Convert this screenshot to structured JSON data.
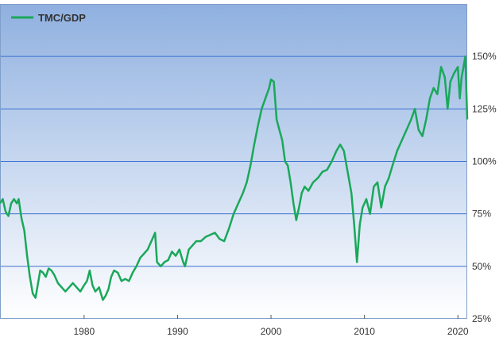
{
  "colors": {
    "series": "#1aa85a",
    "grid": "#3a6fd1",
    "bg_top": "#8fb0e0",
    "bg_bottom": "#ffffff",
    "frame": "#7f9fc9"
  },
  "chart_data": {
    "type": "line",
    "title": "",
    "xlabel": "",
    "ylabel": "",
    "xlim": [
      1971,
      2021
    ],
    "ylim": [
      0.25,
      1.75
    ],
    "grid": true,
    "legend_position": "top-left",
    "y_axis_side": "right",
    "y_ticks": [
      {
        "value": 0.25,
        "label": "25%"
      },
      {
        "value": 0.5,
        "label": "50%"
      },
      {
        "value": 0.75,
        "label": "75%"
      },
      {
        "value": 1.0,
        "label": "100%"
      },
      {
        "value": 1.25,
        "label": "125%"
      },
      {
        "value": 1.5,
        "label": "150%"
      }
    ],
    "x_ticks": [
      {
        "value": 1980,
        "label": "1980"
      },
      {
        "value": 1990,
        "label": "1990"
      },
      {
        "value": 2000,
        "label": "2000"
      },
      {
        "value": 2010,
        "label": "2010"
      },
      {
        "value": 2020,
        "label": "2020"
      }
    ],
    "series": [
      {
        "name": "TMC/GDP",
        "x": [
          1971.0,
          1971.3,
          1971.6,
          1971.9,
          1972.2,
          1972.5,
          1972.8,
          1973.0,
          1973.3,
          1973.6,
          1973.9,
          1974.2,
          1974.5,
          1974.8,
          1975.0,
          1975.3,
          1975.6,
          1975.9,
          1976.2,
          1976.5,
          1976.8,
          1977.2,
          1977.6,
          1978.0,
          1978.4,
          1978.8,
          1979.2,
          1979.6,
          1980.0,
          1980.3,
          1980.6,
          1980.9,
          1981.2,
          1981.6,
          1982.0,
          1982.3,
          1982.6,
          1982.9,
          1983.2,
          1983.6,
          1984.0,
          1984.4,
          1984.8,
          1985.2,
          1985.6,
          1986.0,
          1986.4,
          1986.8,
          1987.2,
          1987.6,
          1987.8,
          1988.2,
          1988.6,
          1989.0,
          1989.4,
          1989.8,
          1990.2,
          1990.6,
          1990.8,
          1991.2,
          1991.6,
          1992.0,
          1992.5,
          1993.0,
          1993.5,
          1994.0,
          1994.5,
          1995.0,
          1995.5,
          1996.0,
          1996.5,
          1997.0,
          1997.4,
          1997.8,
          1998.2,
          1998.6,
          1999.0,
          1999.4,
          1999.8,
          2000.0,
          2000.3,
          2000.6,
          2000.9,
          2001.2,
          2001.5,
          2001.8,
          2002.1,
          2002.4,
          2002.7,
          2003.0,
          2003.3,
          2003.6,
          2004.0,
          2004.5,
          2005.0,
          2005.5,
          2006.0,
          2006.5,
          2007.0,
          2007.4,
          2007.8,
          2008.2,
          2008.6,
          2008.9,
          2009.2,
          2009.5,
          2009.8,
          2010.2,
          2010.6,
          2011.0,
          2011.4,
          2011.8,
          2012.2,
          2012.6,
          2013.0,
          2013.5,
          2014.0,
          2014.5,
          2015.0,
          2015.4,
          2015.8,
          2016.2,
          2016.6,
          2017.0,
          2017.4,
          2017.8,
          2018.2,
          2018.6,
          2018.9,
          2019.2,
          2019.6,
          2020.0,
          2020.2,
          2020.4,
          2020.6,
          2020.8,
          2021.0
        ],
        "y": [
          0.8,
          0.82,
          0.76,
          0.74,
          0.8,
          0.82,
          0.8,
          0.82,
          0.73,
          0.67,
          0.55,
          0.45,
          0.37,
          0.35,
          0.4,
          0.48,
          0.47,
          0.45,
          0.49,
          0.48,
          0.46,
          0.42,
          0.4,
          0.38,
          0.4,
          0.42,
          0.4,
          0.38,
          0.41,
          0.43,
          0.48,
          0.41,
          0.38,
          0.4,
          0.34,
          0.36,
          0.39,
          0.45,
          0.48,
          0.47,
          0.43,
          0.44,
          0.43,
          0.47,
          0.5,
          0.54,
          0.56,
          0.58,
          0.62,
          0.66,
          0.52,
          0.5,
          0.52,
          0.53,
          0.57,
          0.55,
          0.58,
          0.52,
          0.5,
          0.58,
          0.6,
          0.62,
          0.62,
          0.64,
          0.65,
          0.66,
          0.63,
          0.62,
          0.68,
          0.75,
          0.8,
          0.85,
          0.9,
          0.98,
          1.08,
          1.17,
          1.25,
          1.3,
          1.35,
          1.39,
          1.38,
          1.2,
          1.15,
          1.1,
          1.0,
          0.98,
          0.9,
          0.8,
          0.72,
          0.78,
          0.85,
          0.88,
          0.86,
          0.9,
          0.92,
          0.95,
          0.96,
          1.0,
          1.05,
          1.08,
          1.05,
          0.95,
          0.85,
          0.7,
          0.52,
          0.7,
          0.78,
          0.82,
          0.75,
          0.88,
          0.9,
          0.78,
          0.88,
          0.92,
          0.98,
          1.05,
          1.1,
          1.15,
          1.2,
          1.25,
          1.15,
          1.12,
          1.2,
          1.3,
          1.35,
          1.32,
          1.45,
          1.4,
          1.25,
          1.38,
          1.42,
          1.45,
          1.3,
          1.4,
          1.45,
          1.5,
          1.2
        ]
      }
    ]
  }
}
